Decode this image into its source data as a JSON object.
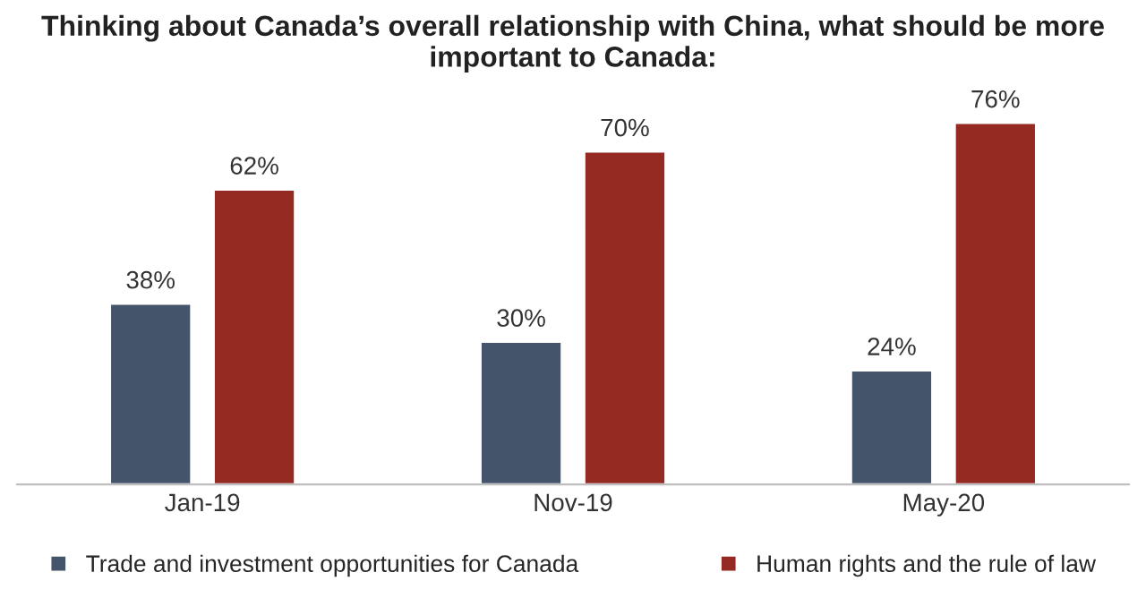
{
  "chart_data": {
    "type": "bar",
    "title": "Thinking about Canada’s overall relationship with China, what should be more important to Canada:",
    "categories": [
      "Jan-19",
      "Nov-19",
      "May-20"
    ],
    "series": [
      {
        "name": "Trade and investment opportunities for Canada",
        "color": "#44546a",
        "values": [
          38,
          30,
          24
        ],
        "value_labels": [
          "38%",
          "30%",
          "24%"
        ]
      },
      {
        "name": "Human rights and the rule of law",
        "color": "#942a22",
        "values": [
          62,
          70,
          76
        ],
        "value_labels": [
          "62%",
          "70%",
          "76%"
        ]
      }
    ],
    "legend": "bottom",
    "grid": false
  }
}
